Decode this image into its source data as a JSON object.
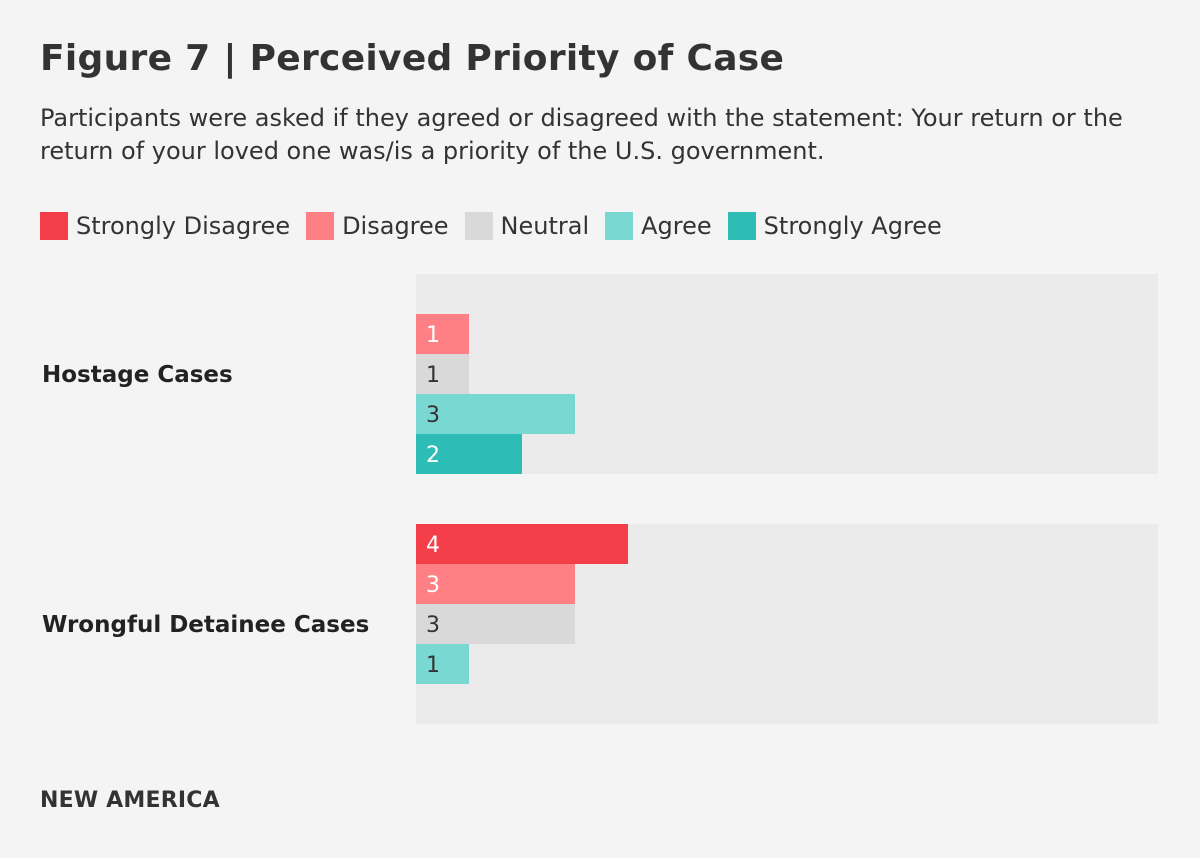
{
  "chart_data": {
    "type": "bar",
    "orientation": "horizontal",
    "title": "Figure 7 | Perceived Priority of Case",
    "subtitle": "Participants were asked if they agreed or disagreed with the statement: Your return or the return of your loved one was/is a priority of the U.S. government.",
    "xlim": [
      0,
      14
    ],
    "legend": [
      {
        "name": "Strongly Disagree",
        "color": "#f43f4b"
      },
      {
        "name": "Disagree",
        "color": "#fe8085"
      },
      {
        "name": "Neutral",
        "color": "#d9d9d9"
      },
      {
        "name": "Agree",
        "color": "#7ad8d2"
      },
      {
        "name": "Strongly Agree",
        "color": "#2ebdb6"
      }
    ],
    "groups": [
      {
        "label": "Hostage Cases",
        "bars": [
          {
            "series": "Disagree",
            "value": 1
          },
          {
            "series": "Neutral",
            "value": 1
          },
          {
            "series": "Agree",
            "value": 3
          },
          {
            "series": "Strongly Agree",
            "value": 2
          }
        ]
      },
      {
        "label": "Wrongful Detainee Cases",
        "bars": [
          {
            "series": "Strongly Disagree",
            "value": 4
          },
          {
            "series": "Disagree",
            "value": 3
          },
          {
            "series": "Neutral",
            "value": 3
          },
          {
            "series": "Agree",
            "value": 1
          }
        ]
      }
    ]
  },
  "footer": {
    "logo_text": "NEW AMERICA"
  }
}
